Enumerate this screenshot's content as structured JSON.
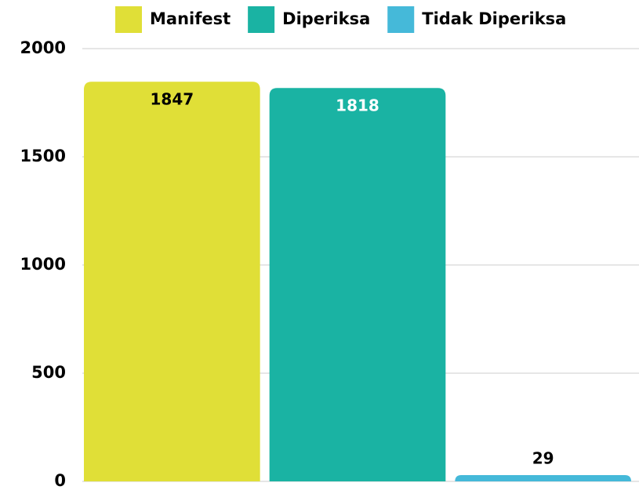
{
  "chart_data": {
    "type": "bar",
    "categories": [
      null
    ],
    "series": [
      {
        "name": "Manifest",
        "color": "#e0df37",
        "label_color": "#000000",
        "values": [
          1847
        ]
      },
      {
        "name": "Diperiksa",
        "color": "#1ab3a3",
        "label_color": "#ffffff",
        "values": [
          1818
        ]
      },
      {
        "name": "Tidak Diperiksa",
        "color": "#45b9d9",
        "label_color": "#000000",
        "values": [
          29
        ]
      }
    ],
    "ylim": [
      0,
      2000
    ],
    "yticks": [
      0,
      500,
      1000,
      1500,
      2000
    ],
    "grid": true,
    "legend": "top"
  }
}
